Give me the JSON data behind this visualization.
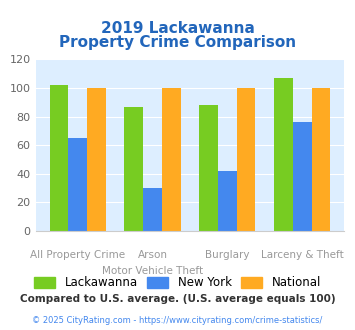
{
  "title_line1": "2019 Lackawanna",
  "title_line2": "Property Crime Comparison",
  "cat_labels_row1": [
    "",
    "Arson",
    "Burglary",
    ""
  ],
  "cat_labels_row2": [
    "All Property Crime",
    "Motor Vehicle Theft",
    "",
    "Larceny & Theft"
  ],
  "lackawanna": [
    102,
    87,
    88,
    107
  ],
  "new_york": [
    65,
    30,
    42,
    76
  ],
  "national": [
    100,
    100,
    100,
    100
  ],
  "color_lackawanna": "#77cc22",
  "color_new_york": "#4488ee",
  "color_national": "#ffaa22",
  "ylim": [
    0,
    120
  ],
  "yticks": [
    0,
    20,
    40,
    60,
    80,
    100,
    120
  ],
  "background_color": "#ddeeff",
  "legend_labels": [
    "Lackawanna",
    "New York",
    "National"
  ],
  "footnote1": "Compared to U.S. average. (U.S. average equals 100)",
  "footnote2": "© 2025 CityRating.com - https://www.cityrating.com/crime-statistics/",
  "title_color": "#2266bb",
  "axis_label_color": "#999999"
}
